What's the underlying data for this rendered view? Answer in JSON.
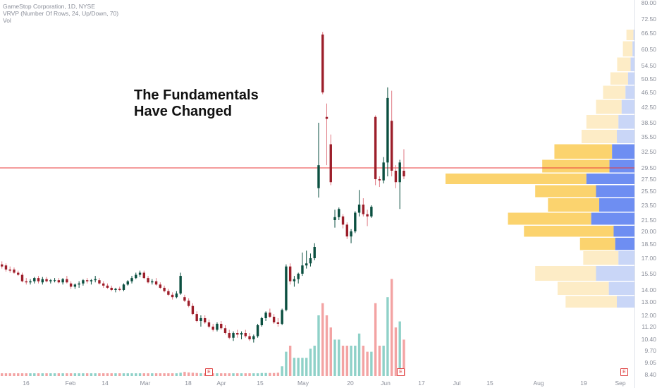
{
  "legend": {
    "title": "GameStop Corporation, 1D, NYSE",
    "vrvp": "VRVP (Number Of Rows, 24, Up/Down, 70)",
    "vol": "Vol"
  },
  "headline": [
    "The Fundamentals",
    "Have Changed"
  ],
  "earnings_badge": "E",
  "colors": {
    "up": "#0b4f40",
    "down": "#9c1e2a",
    "vol_up": "#8fd1c8",
    "vol_down": "#f3a3a3",
    "hline": "#e83a3a",
    "vp_up_strong": "#6e8ef2",
    "vp_down_strong": "#fbd36e",
    "vp_up_light": "#c9d6f7",
    "vp_down_light": "#fdecc6"
  },
  "price_axis": {
    "labels": [
      "80.00",
      "72.50",
      "66.50",
      "60.50",
      "54.50",
      "50.50",
      "46.50",
      "42.50",
      "38.50",
      "35.50",
      "32.50",
      "29.50",
      "27.50",
      "25.50",
      "23.50",
      "21.50",
      "20.00",
      "18.50",
      "17.00",
      "15.50",
      "14.00",
      "13.00",
      "12.00",
      "11.20",
      "10.40",
      "9.70",
      "9.05",
      "8.40"
    ]
  },
  "chart_data": {
    "type": "candlestick",
    "title": "GameStop Corporation, 1D, NYSE",
    "x_labels": [
      "16",
      "Feb",
      "14",
      "Mar",
      "18",
      "Apr",
      "15",
      "May",
      "20",
      "Jun",
      "17",
      "Jul",
      "15",
      "Aug",
      "19",
      "Sep"
    ],
    "horizontal_line": 29.5,
    "ylim": [
      8.4,
      80.0
    ],
    "candles": [
      {
        "o": 16.4,
        "h": 16.7,
        "l": 16.0,
        "c": 16.2,
        "v": 1.0
      },
      {
        "o": 16.3,
        "h": 16.5,
        "l": 15.7,
        "c": 15.9,
        "v": 1.0
      },
      {
        "o": 15.9,
        "h": 16.2,
        "l": 15.6,
        "c": 15.8,
        "v": 1.0
      },
      {
        "o": 15.9,
        "h": 16.1,
        "l": 15.5,
        "c": 15.6,
        "v": 1.0
      },
      {
        "o": 15.6,
        "h": 15.8,
        "l": 15.3,
        "c": 15.4,
        "v": 1.0
      },
      {
        "o": 15.4,
        "h": 15.6,
        "l": 14.7,
        "c": 14.8,
        "v": 1.0
      },
      {
        "o": 14.8,
        "h": 15.1,
        "l": 14.5,
        "c": 14.7,
        "v": 1.0
      },
      {
        "o": 14.7,
        "h": 15.0,
        "l": 14.5,
        "c": 14.8,
        "v": 1.0
      },
      {
        "o": 14.8,
        "h": 15.2,
        "l": 14.6,
        "c": 15.1,
        "v": 1.0
      },
      {
        "o": 15.1,
        "h": 15.3,
        "l": 14.6,
        "c": 14.8,
        "v": 1.0
      },
      {
        "o": 14.7,
        "h": 15.2,
        "l": 14.5,
        "c": 15.0,
        "v": 1.0
      },
      {
        "o": 15.0,
        "h": 15.2,
        "l": 14.7,
        "c": 14.8,
        "v": 1.0
      },
      {
        "o": 14.8,
        "h": 15.0,
        "l": 14.6,
        "c": 14.9,
        "v": 1.0
      },
      {
        "o": 14.9,
        "h": 15.1,
        "l": 14.7,
        "c": 14.9,
        "v": 1.0
      },
      {
        "o": 14.9,
        "h": 15.1,
        "l": 14.6,
        "c": 14.7,
        "v": 1.0
      },
      {
        "o": 14.7,
        "h": 15.1,
        "l": 14.5,
        "c": 15.0,
        "v": 1.0
      },
      {
        "o": 15.0,
        "h": 15.3,
        "l": 14.6,
        "c": 14.7,
        "v": 1.0
      },
      {
        "o": 14.6,
        "h": 14.8,
        "l": 14.1,
        "c": 14.3,
        "v": 1.0
      },
      {
        "o": 14.3,
        "h": 14.6,
        "l": 14.1,
        "c": 14.5,
        "v": 1.0
      },
      {
        "o": 14.5,
        "h": 14.8,
        "l": 14.2,
        "c": 14.6,
        "v": 1.0
      },
      {
        "o": 14.6,
        "h": 15.0,
        "l": 14.4,
        "c": 14.9,
        "v": 1.0
      },
      {
        "o": 14.9,
        "h": 15.1,
        "l": 14.6,
        "c": 14.8,
        "v": 1.0
      },
      {
        "o": 14.8,
        "h": 15.0,
        "l": 14.5,
        "c": 14.9,
        "v": 1.0
      },
      {
        "o": 14.9,
        "h": 15.3,
        "l": 14.7,
        "c": 15.0,
        "v": 1.0
      },
      {
        "o": 14.9,
        "h": 15.1,
        "l": 14.5,
        "c": 14.6,
        "v": 1.0
      },
      {
        "o": 14.6,
        "h": 14.8,
        "l": 14.2,
        "c": 14.4,
        "v": 1.0
      },
      {
        "o": 14.4,
        "h": 14.6,
        "l": 14.1,
        "c": 14.2,
        "v": 1.0
      },
      {
        "o": 14.2,
        "h": 14.4,
        "l": 13.9,
        "c": 14.0,
        "v": 1.0
      },
      {
        "o": 14.0,
        "h": 14.2,
        "l": 13.8,
        "c": 14.1,
        "v": 1.0
      },
      {
        "o": 14.1,
        "h": 14.3,
        "l": 13.9,
        "c": 14.0,
        "v": 1.0
      },
      {
        "o": 14.0,
        "h": 14.6,
        "l": 13.9,
        "c": 14.5,
        "v": 1.0
      },
      {
        "o": 14.5,
        "h": 14.9,
        "l": 14.4,
        "c": 14.8,
        "v": 1.0
      },
      {
        "o": 14.8,
        "h": 15.3,
        "l": 14.6,
        "c": 15.1,
        "v": 1.0
      },
      {
        "o": 15.1,
        "h": 15.6,
        "l": 15.0,
        "c": 15.4,
        "v": 1.0
      },
      {
        "o": 15.4,
        "h": 15.8,
        "l": 15.2,
        "c": 15.6,
        "v": 1.0
      },
      {
        "o": 15.6,
        "h": 15.8,
        "l": 15.0,
        "c": 15.1,
        "v": 1.0
      },
      {
        "o": 15.1,
        "h": 15.3,
        "l": 14.6,
        "c": 14.7,
        "v": 1.0
      },
      {
        "o": 14.7,
        "h": 15.0,
        "l": 14.5,
        "c": 14.8,
        "v": 1.0
      },
      {
        "o": 14.8,
        "h": 15.1,
        "l": 14.4,
        "c": 14.5,
        "v": 1.0
      },
      {
        "o": 14.5,
        "h": 14.7,
        "l": 14.1,
        "c": 14.2,
        "v": 1.0
      },
      {
        "o": 14.2,
        "h": 14.4,
        "l": 13.8,
        "c": 13.9,
        "v": 1.0
      },
      {
        "o": 13.9,
        "h": 14.1,
        "l": 13.5,
        "c": 13.6,
        "v": 1.0
      },
      {
        "o": 13.6,
        "h": 13.8,
        "l": 13.2,
        "c": 13.4,
        "v": 1.0
      },
      {
        "o": 13.4,
        "h": 13.9,
        "l": 13.3,
        "c": 13.7,
        "v": 1.0
      },
      {
        "o": 13.7,
        "h": 15.6,
        "l": 13.6,
        "c": 15.3,
        "v": 1.2
      },
      {
        "o": 13.4,
        "h": 13.6,
        "l": 13.0,
        "c": 13.1,
        "v": 1.5
      },
      {
        "o": 13.1,
        "h": 13.3,
        "l": 12.6,
        "c": 12.7,
        "v": 1.3
      },
      {
        "o": 12.7,
        "h": 12.9,
        "l": 12.0,
        "c": 12.1,
        "v": 1.2
      },
      {
        "o": 12.1,
        "h": 12.3,
        "l": 11.5,
        "c": 11.6,
        "v": 1.1
      },
      {
        "o": 11.6,
        "h": 12.0,
        "l": 11.2,
        "c": 11.8,
        "v": 1.0
      },
      {
        "o": 11.8,
        "h": 12.0,
        "l": 11.4,
        "c": 11.5,
        "v": 1.0
      },
      {
        "o": 11.5,
        "h": 11.7,
        "l": 11.1,
        "c": 11.2,
        "v": 1.0
      },
      {
        "o": 11.2,
        "h": 11.4,
        "l": 10.9,
        "c": 11.0,
        "v": 1.0
      },
      {
        "o": 11.0,
        "h": 11.5,
        "l": 10.9,
        "c": 11.4,
        "v": 1.0
      },
      {
        "o": 11.4,
        "h": 11.6,
        "l": 11.0,
        "c": 11.1,
        "v": 1.0
      },
      {
        "o": 11.1,
        "h": 11.3,
        "l": 10.7,
        "c": 10.8,
        "v": 1.0
      },
      {
        "o": 10.8,
        "h": 11.0,
        "l": 10.4,
        "c": 10.5,
        "v": 1.0
      },
      {
        "o": 10.5,
        "h": 10.9,
        "l": 10.3,
        "c": 10.8,
        "v": 1.0
      },
      {
        "o": 10.8,
        "h": 11.0,
        "l": 10.5,
        "c": 10.7,
        "v": 1.0
      },
      {
        "o": 10.7,
        "h": 10.9,
        "l": 10.4,
        "c": 10.8,
        "v": 1.0
      },
      {
        "o": 10.8,
        "h": 11.0,
        "l": 10.5,
        "c": 10.6,
        "v": 1.0
      },
      {
        "o": 10.6,
        "h": 10.8,
        "l": 10.3,
        "c": 10.4,
        "v": 1.0
      },
      {
        "o": 10.4,
        "h": 10.7,
        "l": 10.2,
        "c": 10.6,
        "v": 1.0
      },
      {
        "o": 10.6,
        "h": 11.4,
        "l": 10.5,
        "c": 11.3,
        "v": 1.0
      },
      {
        "o": 11.3,
        "h": 11.9,
        "l": 11.2,
        "c": 11.8,
        "v": 1.1
      },
      {
        "o": 11.8,
        "h": 12.3,
        "l": 11.6,
        "c": 12.2,
        "v": 1.1
      },
      {
        "o": 12.2,
        "h": 12.5,
        "l": 11.8,
        "c": 11.9,
        "v": 1.1
      },
      {
        "o": 11.9,
        "h": 12.1,
        "l": 11.4,
        "c": 11.5,
        "v": 1.1
      },
      {
        "o": 11.5,
        "h": 11.8,
        "l": 11.2,
        "c": 11.4,
        "v": 1.2
      },
      {
        "o": 11.4,
        "h": 12.5,
        "l": 11.3,
        "c": 12.4,
        "v": 1.6
      },
      {
        "o": 12.4,
        "h": 16.4,
        "l": 12.3,
        "c": 16.2,
        "v": 4.0
      },
      {
        "o": 16.2,
        "h": 16.5,
        "l": 14.5,
        "c": 14.8,
        "v": 5.0
      },
      {
        "o": 14.8,
        "h": 15.3,
        "l": 14.3,
        "c": 15.0,
        "v": 3.0
      },
      {
        "o": 15.0,
        "h": 15.6,
        "l": 14.6,
        "c": 15.5,
        "v": 3.0
      },
      {
        "o": 15.5,
        "h": 17.6,
        "l": 15.3,
        "c": 16.3,
        "v": 3.0
      },
      {
        "o": 16.3,
        "h": 17.8,
        "l": 16.0,
        "c": 16.5,
        "v": 3.0
      },
      {
        "o": 16.5,
        "h": 17.5,
        "l": 16.2,
        "c": 17.0,
        "v": 4.5
      },
      {
        "o": 17.0,
        "h": 18.6,
        "l": 16.8,
        "c": 18.2,
        "v": 5.0
      },
      {
        "o": 26.0,
        "h": 38.5,
        "l": 24.6,
        "c": 30.0,
        "v": 10.0
      },
      {
        "o": 66.0,
        "h": 67.0,
        "l": 46.0,
        "c": 46.5,
        "v": 12.0
      },
      {
        "o": 40.0,
        "h": 43.5,
        "l": 30.0,
        "c": 39.5,
        "v": 10.0
      },
      {
        "o": 34.0,
        "h": 36.0,
        "l": 26.5,
        "c": 27.0,
        "v": 8.0
      },
      {
        "o": 21.5,
        "h": 22.9,
        "l": 20.5,
        "c": 21.9,
        "v": 6.0
      },
      {
        "o": 21.9,
        "h": 23.2,
        "l": 21.5,
        "c": 23.0,
        "v": 6.0
      },
      {
        "o": 22.0,
        "h": 22.3,
        "l": 20.4,
        "c": 20.9,
        "v": 5.0
      },
      {
        "o": 20.9,
        "h": 21.2,
        "l": 19.1,
        "c": 19.4,
        "v": 5.0
      },
      {
        "o": 19.4,
        "h": 20.3,
        "l": 18.6,
        "c": 20.0,
        "v": 5.0
      },
      {
        "o": 20.0,
        "h": 22.7,
        "l": 19.8,
        "c": 22.5,
        "v": 5.0
      },
      {
        "o": 22.5,
        "h": 25.7,
        "l": 22.0,
        "c": 23.6,
        "v": 7.0
      },
      {
        "o": 23.6,
        "h": 24.5,
        "l": 22.0,
        "c": 22.3,
        "v": 5.0
      },
      {
        "o": 22.3,
        "h": 22.9,
        "l": 20.7,
        "c": 22.0,
        "v": 4.0
      },
      {
        "o": 22.0,
        "h": 23.5,
        "l": 21.8,
        "c": 23.3,
        "v": 4.0
      },
      {
        "o": 40.0,
        "h": 40.4,
        "l": 26.5,
        "c": 27.5,
        "v": 12.0
      },
      {
        "o": 27.5,
        "h": 28.0,
        "l": 26.2,
        "c": 27.3,
        "v": 5.0
      },
      {
        "o": 27.3,
        "h": 31.5,
        "l": 26.8,
        "c": 30.5,
        "v": 5.0
      },
      {
        "o": 30.5,
        "h": 48.0,
        "l": 28.0,
        "c": 45.0,
        "v": 13.0
      },
      {
        "o": 39.0,
        "h": 47.0,
        "l": 28.0,
        "c": 29.0,
        "v": 16.0
      },
      {
        "o": 29.0,
        "h": 30.0,
        "l": 26.0,
        "c": 27.0,
        "v": 8.0
      },
      {
        "o": 27.0,
        "h": 31.0,
        "l": 23.0,
        "c": 30.5,
        "v": 9.0
      },
      {
        "o": 29.0,
        "h": 33.0,
        "l": 27.5,
        "c": 28.0,
        "v": 6.0
      }
    ],
    "volume_profile": [
      {
        "price": 66.5,
        "up": 0.3,
        "down": 2.2
      },
      {
        "price": 60.5,
        "up": 0.6,
        "down": 3.0
      },
      {
        "price": 54.5,
        "up": 1.2,
        "down": 4.2
      },
      {
        "price": 50.5,
        "up": 2.0,
        "down": 5.5
      },
      {
        "price": 46.5,
        "up": 2.8,
        "down": 7.0
      },
      {
        "price": 42.5,
        "up": 4.0,
        "down": 8.0
      },
      {
        "price": 38.5,
        "up": 5.0,
        "down": 10.0
      },
      {
        "price": 35.5,
        "up": 5.5,
        "down": 11.0
      },
      {
        "price": 32.5,
        "up": 7.0,
        "down": 18.0
      },
      {
        "price": 29.5,
        "up": 7.8,
        "down": 21.0
      },
      {
        "price": 27.5,
        "up": 15.0,
        "down": 44.0
      },
      {
        "price": 25.5,
        "up": 12.0,
        "down": 19.0
      },
      {
        "price": 23.5,
        "up": 11.0,
        "down": 16.0
      },
      {
        "price": 21.5,
        "up": 13.5,
        "down": 26.0
      },
      {
        "price": 20.0,
        "up": 6.5,
        "down": 28.0
      },
      {
        "price": 18.5,
        "up": 6.0,
        "down": 11.0
      },
      {
        "price": 17.0,
        "up": 5.0,
        "down": 11.0
      },
      {
        "price": 15.5,
        "up": 12.0,
        "down": 19.0
      },
      {
        "price": 14.0,
        "up": 8.0,
        "down": 16.0
      },
      {
        "price": 13.0,
        "up": 5.5,
        "down": 16.0
      }
    ]
  }
}
